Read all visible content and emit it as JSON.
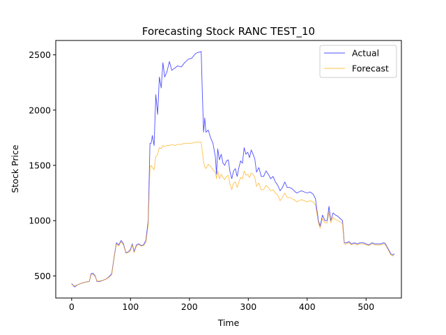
{
  "chart_data": {
    "type": "line",
    "title": "Forecasting Stock RANC TEST_10",
    "xlabel": "Time",
    "ylabel": "Stock Price",
    "xlim": [
      -27,
      560
    ],
    "ylim": [
      300,
      2630
    ],
    "xticks": [
      0,
      100,
      200,
      300,
      400,
      500
    ],
    "yticks": [
      500,
      1000,
      1500,
      2000,
      2500
    ],
    "grid": false,
    "legend": "upper right",
    "series": [
      {
        "name": "Actual",
        "color": "#0000ff",
        "points": [
          [
            0,
            430
          ],
          [
            5,
            400
          ],
          [
            10,
            420
          ],
          [
            15,
            430
          ],
          [
            20,
            440
          ],
          [
            25,
            445
          ],
          [
            30,
            450
          ],
          [
            33,
            520
          ],
          [
            36,
            525
          ],
          [
            40,
            500
          ],
          [
            43,
            450
          ],
          [
            48,
            450
          ],
          [
            53,
            460
          ],
          [
            58,
            470
          ],
          [
            63,
            490
          ],
          [
            68,
            520
          ],
          [
            73,
            700
          ],
          [
            76,
            800
          ],
          [
            80,
            780
          ],
          [
            84,
            820
          ],
          [
            88,
            790
          ],
          [
            92,
            710
          ],
          [
            97,
            720
          ],
          [
            100,
            740
          ],
          [
            103,
            790
          ],
          [
            106,
            720
          ],
          [
            110,
            780
          ],
          [
            114,
            790
          ],
          [
            118,
            775
          ],
          [
            122,
            780
          ],
          [
            126,
            820
          ],
          [
            130,
            1000
          ],
          [
            133,
            1700
          ],
          [
            135,
            1700
          ],
          [
            137,
            1770
          ],
          [
            140,
            1680
          ],
          [
            143,
            2140
          ],
          [
            146,
            1960
          ],
          [
            149,
            2300
          ],
          [
            152,
            2200
          ],
          [
            155,
            2430
          ],
          [
            158,
            2300
          ],
          [
            162,
            2350
          ],
          [
            166,
            2440
          ],
          [
            170,
            2360
          ],
          [
            175,
            2380
          ],
          [
            180,
            2400
          ],
          [
            186,
            2390
          ],
          [
            192,
            2430
          ],
          [
            198,
            2460
          ],
          [
            204,
            2470
          ],
          [
            210,
            2510
          ],
          [
            214,
            2520
          ],
          [
            220,
            2530
          ],
          [
            222,
            2150
          ],
          [
            224,
            1800
          ],
          [
            226,
            1930
          ],
          [
            228,
            1800
          ],
          [
            232,
            1820
          ],
          [
            236,
            1750
          ],
          [
            240,
            1700
          ],
          [
            244,
            1580
          ],
          [
            246,
            1420
          ],
          [
            248,
            1650
          ],
          [
            251,
            1550
          ],
          [
            254,
            1600
          ],
          [
            257,
            1520
          ],
          [
            260,
            1500
          ],
          [
            263,
            1540
          ],
          [
            266,
            1550
          ],
          [
            269,
            1440
          ],
          [
            272,
            1380
          ],
          [
            275,
            1450
          ],
          [
            278,
            1470
          ],
          [
            281,
            1400
          ],
          [
            284,
            1480
          ],
          [
            287,
            1540
          ],
          [
            290,
            1520
          ],
          [
            293,
            1660
          ],
          [
            296,
            1600
          ],
          [
            299,
            1620
          ],
          [
            302,
            1570
          ],
          [
            305,
            1640
          ],
          [
            308,
            1600
          ],
          [
            311,
            1560
          ],
          [
            314,
            1440
          ],
          [
            318,
            1480
          ],
          [
            322,
            1400
          ],
          [
            326,
            1400
          ],
          [
            330,
            1450
          ],
          [
            334,
            1420
          ],
          [
            338,
            1380
          ],
          [
            342,
            1400
          ],
          [
            346,
            1350
          ],
          [
            350,
            1320
          ],
          [
            354,
            1270
          ],
          [
            358,
            1300
          ],
          [
            362,
            1350
          ],
          [
            366,
            1300
          ],
          [
            370,
            1300
          ],
          [
            374,
            1290
          ],
          [
            378,
            1270
          ],
          [
            382,
            1250
          ],
          [
            386,
            1260
          ],
          [
            390,
            1270
          ],
          [
            395,
            1260
          ],
          [
            400,
            1250
          ],
          [
            405,
            1260
          ],
          [
            410,
            1240
          ],
          [
            414,
            1200
          ],
          [
            416,
            1120
          ],
          [
            419,
            1000
          ],
          [
            422,
            950
          ],
          [
            426,
            1050
          ],
          [
            430,
            1000
          ],
          [
            434,
            1000
          ],
          [
            437,
            1130
          ],
          [
            440,
            1000
          ],
          [
            444,
            1070
          ],
          [
            448,
            1050
          ],
          [
            452,
            1040
          ],
          [
            456,
            1020
          ],
          [
            460,
            1000
          ],
          [
            463,
            800
          ],
          [
            467,
            800
          ],
          [
            471,
            810
          ],
          [
            475,
            790
          ],
          [
            480,
            800
          ],
          [
            485,
            790
          ],
          [
            490,
            800
          ],
          [
            495,
            800
          ],
          [
            500,
            790
          ],
          [
            505,
            780
          ],
          [
            510,
            800
          ],
          [
            515,
            790
          ],
          [
            520,
            790
          ],
          [
            525,
            790
          ],
          [
            530,
            800
          ],
          [
            533,
            790
          ],
          [
            536,
            760
          ],
          [
            539,
            730
          ],
          [
            542,
            700
          ],
          [
            545,
            690
          ],
          [
            548,
            700
          ]
        ]
      },
      {
        "name": "Forecast",
        "color": "#ffa500",
        "points": [
          [
            0,
            420
          ],
          [
            5,
            410
          ],
          [
            10,
            420
          ],
          [
            15,
            430
          ],
          [
            20,
            440
          ],
          [
            25,
            445
          ],
          [
            30,
            450
          ],
          [
            33,
            510
          ],
          [
            36,
            515
          ],
          [
            40,
            495
          ],
          [
            43,
            455
          ],
          [
            48,
            455
          ],
          [
            53,
            460
          ],
          [
            58,
            470
          ],
          [
            63,
            485
          ],
          [
            68,
            510
          ],
          [
            73,
            690
          ],
          [
            76,
            790
          ],
          [
            80,
            770
          ],
          [
            84,
            810
          ],
          [
            88,
            780
          ],
          [
            92,
            705
          ],
          [
            97,
            715
          ],
          [
            100,
            730
          ],
          [
            103,
            780
          ],
          [
            106,
            710
          ],
          [
            110,
            770
          ],
          [
            114,
            785
          ],
          [
            118,
            770
          ],
          [
            122,
            775
          ],
          [
            126,
            800
          ],
          [
            130,
            960
          ],
          [
            133,
            1480
          ],
          [
            135,
            1500
          ],
          [
            137,
            1480
          ],
          [
            140,
            1460
          ],
          [
            143,
            1580
          ],
          [
            146,
            1600
          ],
          [
            149,
            1660
          ],
          [
            152,
            1650
          ],
          [
            155,
            1680
          ],
          [
            158,
            1670
          ],
          [
            162,
            1680
          ],
          [
            166,
            1680
          ],
          [
            170,
            1690
          ],
          [
            175,
            1680
          ],
          [
            180,
            1690
          ],
          [
            186,
            1690
          ],
          [
            192,
            1700
          ],
          [
            198,
            1700
          ],
          [
            204,
            1700
          ],
          [
            210,
            1710
          ],
          [
            214,
            1710
          ],
          [
            220,
            1710
          ],
          [
            222,
            1620
          ],
          [
            224,
            1530
          ],
          [
            226,
            1490
          ],
          [
            228,
            1470
          ],
          [
            232,
            1510
          ],
          [
            236,
            1490
          ],
          [
            240,
            1460
          ],
          [
            244,
            1440
          ],
          [
            246,
            1380
          ],
          [
            248,
            1450
          ],
          [
            251,
            1380
          ],
          [
            254,
            1420
          ],
          [
            257,
            1390
          ],
          [
            260,
            1370
          ],
          [
            263,
            1400
          ],
          [
            266,
            1410
          ],
          [
            269,
            1330
          ],
          [
            272,
            1280
          ],
          [
            275,
            1340
          ],
          [
            278,
            1350
          ],
          [
            281,
            1300
          ],
          [
            284,
            1350
          ],
          [
            287,
            1390
          ],
          [
            290,
            1380
          ],
          [
            293,
            1450
          ],
          [
            296,
            1410
          ],
          [
            299,
            1420
          ],
          [
            302,
            1390
          ],
          [
            305,
            1430
          ],
          [
            308,
            1420
          ],
          [
            311,
            1390
          ],
          [
            314,
            1310
          ],
          [
            318,
            1340
          ],
          [
            322,
            1280
          ],
          [
            326,
            1280
          ],
          [
            330,
            1320
          ],
          [
            334,
            1300
          ],
          [
            338,
            1270
          ],
          [
            342,
            1280
          ],
          [
            346,
            1250
          ],
          [
            350,
            1230
          ],
          [
            354,
            1180
          ],
          [
            358,
            1210
          ],
          [
            362,
            1250
          ],
          [
            366,
            1210
          ],
          [
            370,
            1210
          ],
          [
            374,
            1200
          ],
          [
            378,
            1190
          ],
          [
            382,
            1170
          ],
          [
            386,
            1180
          ],
          [
            390,
            1190
          ],
          [
            395,
            1180
          ],
          [
            400,
            1170
          ],
          [
            405,
            1180
          ],
          [
            410,
            1170
          ],
          [
            414,
            1140
          ],
          [
            416,
            1080
          ],
          [
            419,
            980
          ],
          [
            422,
            930
          ],
          [
            426,
            1020
          ],
          [
            430,
            980
          ],
          [
            434,
            980
          ],
          [
            437,
            1080
          ],
          [
            440,
            980
          ],
          [
            444,
            1030
          ],
          [
            448,
            1010
          ],
          [
            452,
            1000
          ],
          [
            456,
            990
          ],
          [
            460,
            970
          ],
          [
            463,
            790
          ],
          [
            467,
            790
          ],
          [
            471,
            800
          ],
          [
            475,
            780
          ],
          [
            480,
            790
          ],
          [
            485,
            780
          ],
          [
            490,
            790
          ],
          [
            495,
            790
          ],
          [
            500,
            780
          ],
          [
            505,
            775
          ],
          [
            510,
            790
          ],
          [
            515,
            780
          ],
          [
            520,
            780
          ],
          [
            525,
            780
          ],
          [
            530,
            790
          ],
          [
            533,
            780
          ],
          [
            536,
            750
          ],
          [
            539,
            720
          ],
          [
            542,
            690
          ],
          [
            545,
            680
          ],
          [
            548,
            690
          ]
        ]
      }
    ]
  }
}
